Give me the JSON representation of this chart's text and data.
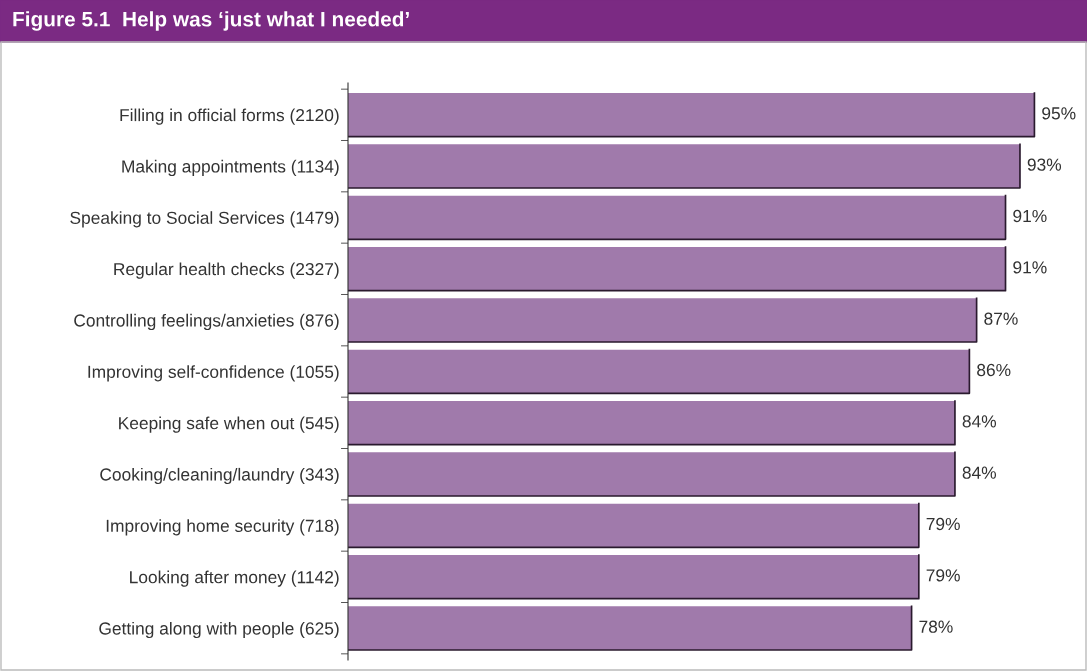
{
  "chart_data": {
    "type": "bar",
    "orientation": "horizontal",
    "title": "Figure 5.1  Help was ‘just what I needed’",
    "categories": [
      "Filling in official forms (2120)",
      "Making appointments (1134)",
      "Speaking to Social Services (1479)",
      "Regular health checks (2327)",
      "Controlling feelings/anxieties (876)",
      "Improving self-confidence (1055)",
      "Keeping safe when out (545)",
      "Cooking/cleaning/laundry (343)",
      "Improving home security (718)",
      "Looking after money (1142)",
      "Getting along with people (625)"
    ],
    "values": [
      95,
      93,
      91,
      91,
      87,
      86,
      84,
      84,
      79,
      79,
      78
    ],
    "value_labels": [
      "95%",
      "93%",
      "91%",
      "91%",
      "87%",
      "86%",
      "84%",
      "84%",
      "79%",
      "79%",
      "78%"
    ],
    "color": "#a07aab",
    "xlim": [
      0,
      102
    ],
    "grid": false,
    "legend": false,
    "tick_labels": "y"
  }
}
